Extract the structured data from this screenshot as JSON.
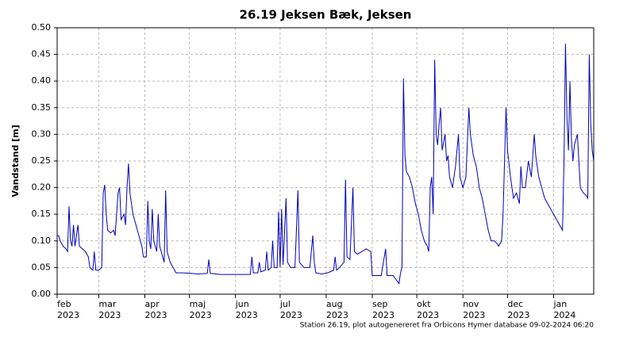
{
  "chart_data": {
    "type": "line",
    "title": "26.19  Jeksen Bæk, Jeksen",
    "ylabel": "Vandstand [m]",
    "footnote": "Station 26.19, plot autogenereret fra Orbicons Hymer database 09-02-2024 06:20",
    "color": "#0000c0",
    "grid": true,
    "xlim": [
      0,
      361
    ],
    "xticks": [
      {
        "value": 0,
        "label": "feb"
      },
      {
        "value": 28,
        "label": "mar"
      },
      {
        "value": 59,
        "label": "apr"
      },
      {
        "value": 89,
        "label": "maj"
      },
      {
        "value": 120,
        "label": "jun"
      },
      {
        "value": 150,
        "label": "jul"
      },
      {
        "value": 181,
        "label": "aug"
      },
      {
        "value": 212,
        "label": "sep"
      },
      {
        "value": 242,
        "label": "okt"
      },
      {
        "value": 273,
        "label": "nov"
      },
      {
        "value": 303,
        "label": "dec"
      },
      {
        "value": 334,
        "label": "jan"
      }
    ],
    "xtick_years": [
      "2023",
      "2023",
      "2023",
      "2023",
      "2023",
      "2023",
      "2023",
      "2023",
      "2023",
      "2023",
      "2023",
      "2024"
    ],
    "ylim": [
      0,
      0.5
    ],
    "yticks": [
      {
        "value": 0,
        "label": "0.00"
      },
      {
        "value": 0.05,
        "label": "0.05"
      },
      {
        "value": 0.1,
        "label": "0.10"
      },
      {
        "value": 0.15,
        "label": "0.15"
      },
      {
        "value": 0.2,
        "label": "0.20"
      },
      {
        "value": 0.25,
        "label": "0.25"
      },
      {
        "value": 0.3,
        "label": "0.30"
      },
      {
        "value": 0.35,
        "label": "0.35"
      },
      {
        "value": 0.4,
        "label": "0.40"
      },
      {
        "value": 0.45,
        "label": "0.45"
      },
      {
        "value": 0.5,
        "label": "0.50"
      }
    ],
    "x": [
      0,
      1,
      2,
      4,
      6,
      7,
      8,
      9,
      10,
      11,
      12,
      14,
      15,
      17,
      19,
      21,
      22,
      24,
      25,
      26,
      28,
      30,
      31,
      32,
      33,
      34,
      36,
      38,
      39,
      41,
      42,
      43,
      45,
      46,
      47,
      48,
      49,
      51,
      53,
      55,
      57,
      58,
      60,
      61,
      62,
      63,
      64,
      65,
      67,
      68,
      69,
      71,
      72,
      73,
      74,
      76,
      78,
      80,
      85,
      90,
      95,
      101,
      102,
      103,
      110,
      120,
      130,
      131,
      132,
      135,
      136,
      137,
      140,
      141,
      142,
      144,
      145,
      146,
      148,
      149,
      150,
      151,
      152,
      154,
      155,
      157,
      160,
      162,
      163,
      166,
      170,
      172,
      173,
      174,
      178,
      182,
      186,
      187,
      188,
      190,
      193,
      194,
      195,
      197,
      199,
      200,
      202,
      205,
      208,
      211,
      212,
      215,
      218,
      221,
      222,
      226,
      230,
      231,
      232,
      233,
      234,
      235,
      237,
      239,
      241,
      243,
      245,
      247,
      249,
      250,
      251,
      252,
      253,
      254,
      255,
      256,
      257,
      258,
      259,
      261,
      262,
      263,
      264,
      266,
      268,
      270,
      271,
      273,
      275,
      277,
      278,
      280,
      282,
      284,
      286,
      288,
      290,
      292,
      294,
      296,
      297,
      299,
      300,
      301,
      302,
      303,
      305,
      307,
      309,
      311,
      312,
      313,
      315,
      317,
      319,
      321,
      322,
      324,
      326,
      328,
      330,
      332,
      334,
      336,
      338,
      340,
      341,
      342,
      343,
      344,
      345,
      346,
      347,
      348,
      350,
      351,
      352,
      354,
      356,
      357,
      358,
      359,
      360,
      361
    ],
    "values": [
      0.11,
      0.11,
      0.1,
      0.09,
      0.085,
      0.08,
      0.165,
      0.1,
      0.09,
      0.13,
      0.09,
      0.13,
      0.09,
      0.085,
      0.08,
      0.07,
      0.05,
      0.045,
      0.08,
      0.045,
      0.045,
      0.05,
      0.19,
      0.205,
      0.15,
      0.12,
      0.115,
      0.12,
      0.11,
      0.19,
      0.2,
      0.14,
      0.15,
      0.13,
      0.2,
      0.245,
      0.19,
      0.15,
      0.13,
      0.11,
      0.09,
      0.07,
      0.07,
      0.175,
      0.1,
      0.085,
      0.16,
      0.1,
      0.08,
      0.15,
      0.09,
      0.07,
      0.06,
      0.195,
      0.08,
      0.06,
      0.05,
      0.04,
      0.04,
      0.039,
      0.038,
      0.039,
      0.065,
      0.039,
      0.037,
      0.037,
      0.037,
      0.07,
      0.04,
      0.04,
      0.06,
      0.042,
      0.045,
      0.08,
      0.045,
      0.05,
      0.1,
      0.05,
      0.05,
      0.155,
      0.05,
      0.16,
      0.055,
      0.18,
      0.06,
      0.05,
      0.05,
      0.195,
      0.06,
      0.05,
      0.05,
      0.11,
      0.06,
      0.04,
      0.038,
      0.04,
      0.045,
      0.07,
      0.045,
      0.05,
      0.06,
      0.215,
      0.07,
      0.065,
      0.2,
      0.08,
      0.075,
      0.08,
      0.085,
      0.08,
      0.035,
      0.035,
      0.035,
      0.085,
      0.035,
      0.035,
      0.02,
      0.04,
      0.05,
      0.405,
      0.26,
      0.23,
      0.22,
      0.2,
      0.17,
      0.15,
      0.12,
      0.1,
      0.09,
      0.08,
      0.2,
      0.22,
      0.15,
      0.44,
      0.3,
      0.28,
      0.32,
      0.35,
      0.27,
      0.3,
      0.25,
      0.26,
      0.22,
      0.2,
      0.24,
      0.3,
      0.22,
      0.2,
      0.22,
      0.35,
      0.3,
      0.26,
      0.24,
      0.2,
      0.18,
      0.15,
      0.12,
      0.1,
      0.1,
      0.095,
      0.09,
      0.1,
      0.15,
      0.25,
      0.35,
      0.27,
      0.22,
      0.18,
      0.19,
      0.17,
      0.24,
      0.2,
      0.2,
      0.25,
      0.22,
      0.3,
      0.26,
      0.22,
      0.2,
      0.18,
      0.17,
      0.16,
      0.15,
      0.14,
      0.13,
      0.12,
      0.25,
      0.47,
      0.33,
      0.27,
      0.4,
      0.29,
      0.25,
      0.28,
      0.3,
      0.25,
      0.2,
      0.19,
      0.185,
      0.18,
      0.45,
      0.32,
      0.27,
      0.25
    ]
  }
}
